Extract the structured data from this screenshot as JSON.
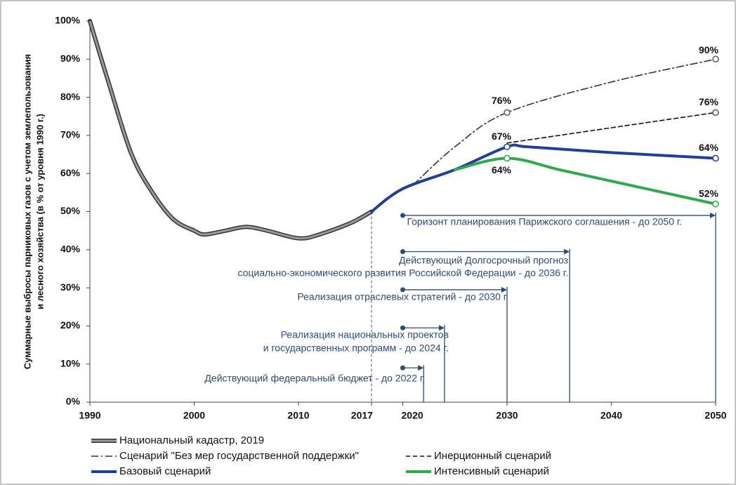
{
  "chart_data": {
    "type": "line",
    "y_label": [
      "Суммарные выбросы парниковых газов с учетом землепользования",
      "и лесного хозяйства (в % от уровня 1990 г.)"
    ],
    "xlim": [
      1990,
      2050
    ],
    "xticks": [
      1990,
      2000,
      2010,
      2017,
      2020,
      2030,
      2040,
      2050
    ],
    "ylim": [
      0,
      100
    ],
    "yticks": [
      {
        "value": 0,
        "label": "0%"
      },
      {
        "value": 10,
        "label": "10%"
      },
      {
        "value": 20,
        "label": "20%"
      },
      {
        "value": 30,
        "label": "30%"
      },
      {
        "value": 40,
        "label": "40%"
      },
      {
        "value": 50,
        "label": "50%"
      },
      {
        "value": 60,
        "label": "60%"
      },
      {
        "value": 70,
        "label": "70%"
      },
      {
        "value": 80,
        "label": "80%"
      },
      {
        "value": 90,
        "label": "90%"
      },
      {
        "value": 100,
        "label": "100%"
      }
    ],
    "series": [
      {
        "name": "Национальный кадастр, 2019",
        "color": "#9a9a9a",
        "dash": "double",
        "x": [
          1990,
          1992,
          1994,
          1996,
          1998,
          2000,
          2001,
          2003,
          2005,
          2007,
          2010,
          2012,
          2015,
          2017
        ],
        "values": [
          100,
          82,
          65,
          55,
          48,
          45,
          44,
          45,
          46,
          45,
          43,
          44,
          47,
          50
        ]
      },
      {
        "name": "Сценарий \"Без мер государственной  поддержки\"",
        "color": "#333333",
        "dash": "dashdot",
        "x": [
          2021,
          2025,
          2030,
          2040,
          2050
        ],
        "values": [
          57,
          67,
          76,
          84,
          90
        ],
        "value_labels": [
          null,
          null,
          "76%",
          null,
          "90%"
        ]
      },
      {
        "name": "Инерционный сценарий",
        "color": "#111111",
        "dash": "dashed",
        "x": [
          2030,
          2040,
          2050
        ],
        "values": [
          68,
          72,
          76
        ],
        "value_labels": [
          null,
          null,
          "76%"
        ]
      },
      {
        "name": "Базовый сценарий",
        "color": "#22409a",
        "dash": "solid",
        "x": [
          2017,
          2020,
          2025,
          2030,
          2032,
          2040,
          2050
        ],
        "values": [
          50,
          56,
          61,
          67,
          67,
          65.5,
          64
        ],
        "value_labels": [
          null,
          null,
          null,
          "67%",
          null,
          null,
          "64%"
        ]
      },
      {
        "name": "Интенсивный сценарий",
        "color": "#2eaa4a",
        "dash": "solid",
        "x": [
          2025,
          2030,
          2035,
          2040,
          2050
        ],
        "values": [
          61,
          64,
          61,
          58,
          52
        ],
        "value_labels": [
          null,
          "64%",
          null,
          null,
          "52%"
        ]
      }
    ],
    "horizons": [
      {
        "label": [
          "Горизонт планирования  Парижского соглашения - до 2050 г."
        ],
        "start": 2020,
        "end": 2050
      },
      {
        "label": [
          "Действующий Долгосрочный прогноз",
          "социально-экономического развития Российской Федерации - до 2036 г."
        ],
        "start": 2020,
        "end": 2036
      },
      {
        "label": [
          "Реализация отраслевых стратегий - до 2030 г."
        ],
        "start": 2020,
        "end": 2030
      },
      {
        "label": [
          "Реализация национальных проектов",
          "и государственных программ - до 2024 г."
        ],
        "start": 2020,
        "end": 2024
      },
      {
        "label": [
          "Действующий федеральный бюджет - до 2022 г."
        ],
        "start": 2020,
        "end": 2022
      }
    ]
  }
}
